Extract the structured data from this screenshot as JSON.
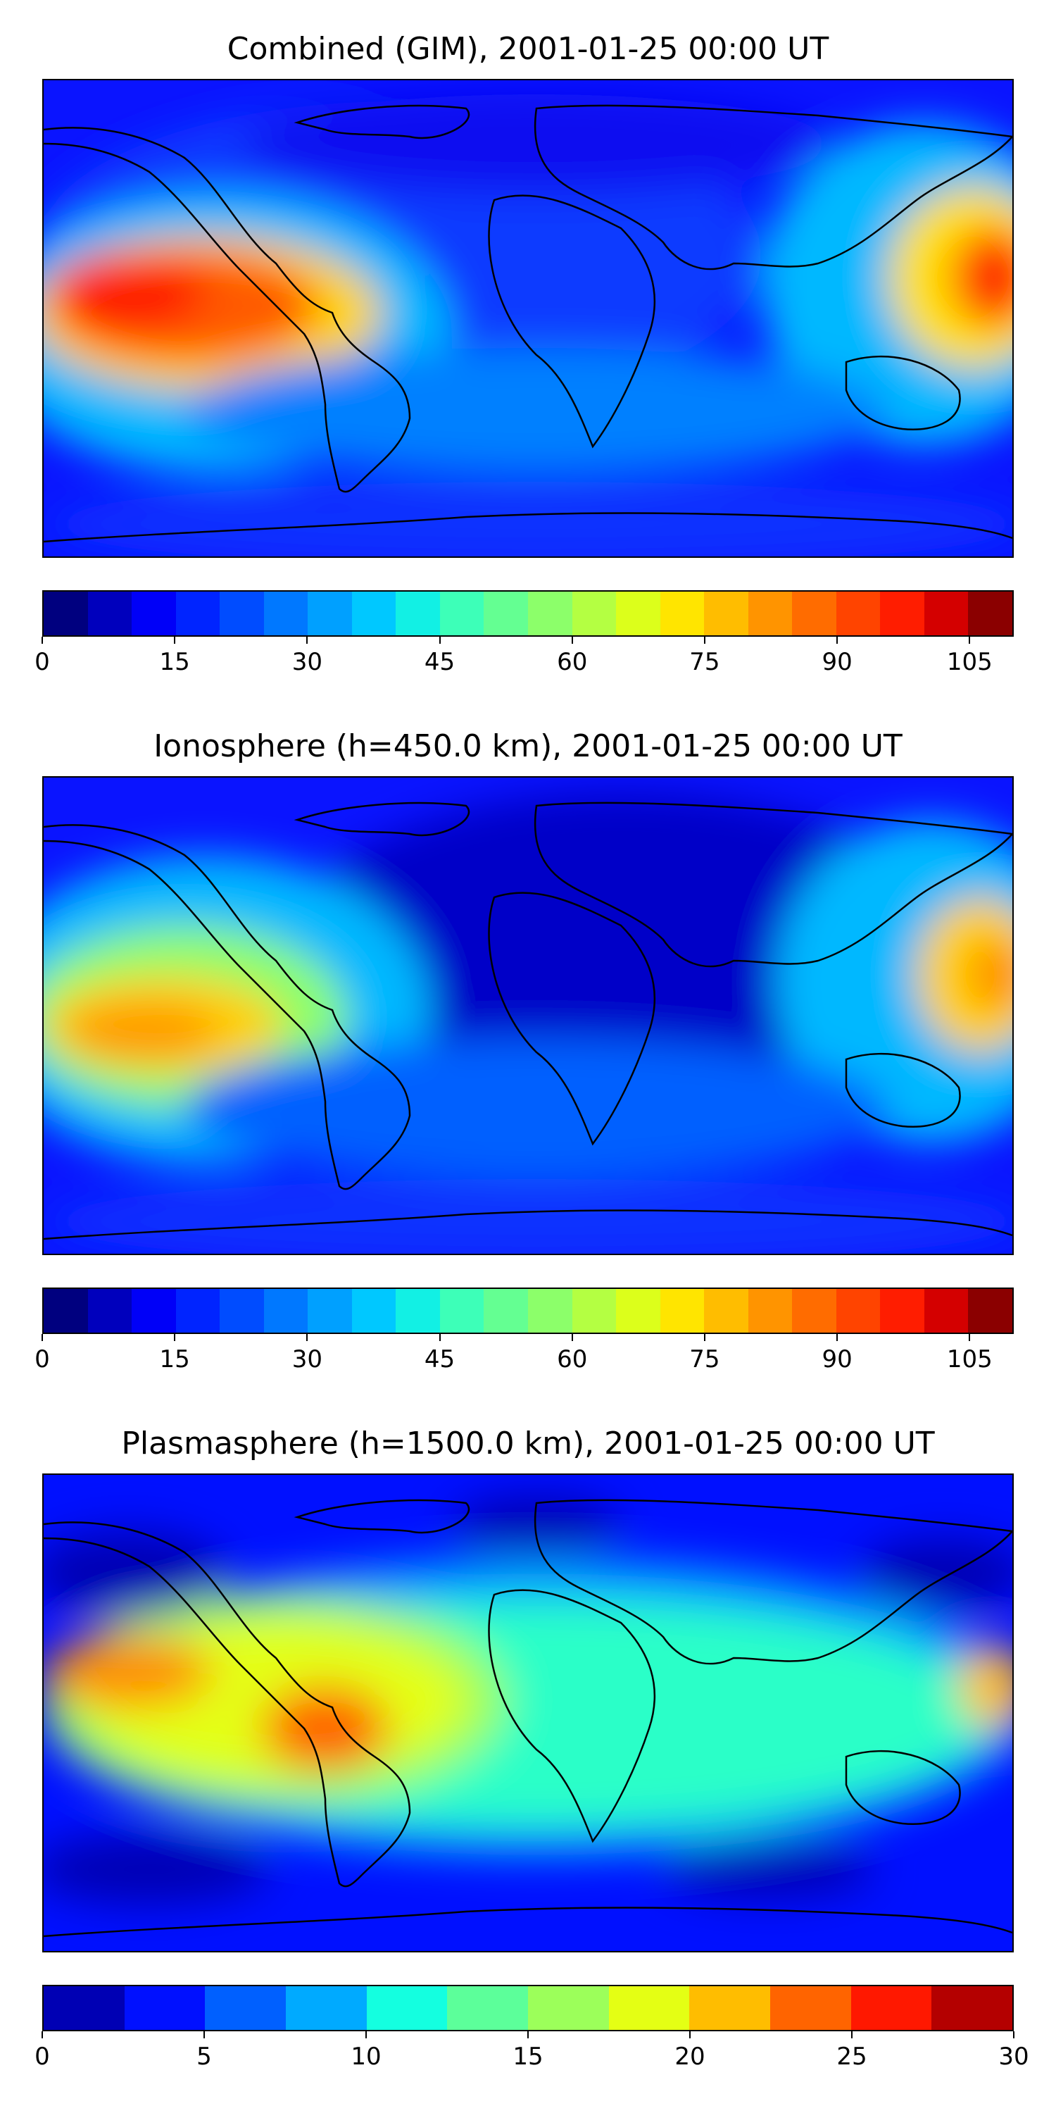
{
  "panels": [
    {
      "title": "Combined (GIM), 2001-01-25 00:00 UT",
      "colorbar": {
        "ticks": [
          "0",
          "15",
          "30",
          "45",
          "60",
          "75",
          "90",
          "105"
        ],
        "tick_values": [
          0,
          15,
          30,
          45,
          60,
          75,
          90,
          105
        ],
        "vmin": 0,
        "vmax": 110,
        "colors": [
          "#00007f",
          "#0000bd",
          "#0000f8",
          "#0024ff",
          "#004cff",
          "#0078ff",
          "#00a0ff",
          "#00c8ff",
          "#12f0e4",
          "#3dffb8",
          "#64ff92",
          "#8cff6a",
          "#b4ff42",
          "#dcff1b",
          "#ffe500",
          "#ffbd00",
          "#ff9400",
          "#ff6c00",
          "#ff4400",
          "#ff1d00",
          "#d40000",
          "#8b0000"
        ]
      },
      "map_colors": {
        "background": "#0a14ff",
        "low": "#0b36ff",
        "mid": "#00b8ff",
        "high": "#ff2a00",
        "peak": "#e00000"
      }
    },
    {
      "title": "Ionosphere  (h=450.0 km), 2001-01-25 00:00 UT",
      "colorbar": {
        "ticks": [
          "0",
          "15",
          "30",
          "45",
          "60",
          "75",
          "90",
          "105"
        ],
        "tick_values": [
          0,
          15,
          30,
          45,
          60,
          75,
          90,
          105
        ],
        "vmin": 0,
        "vmax": 110,
        "colors": [
          "#00007f",
          "#0000bd",
          "#0000f8",
          "#0024ff",
          "#004cff",
          "#0078ff",
          "#00a0ff",
          "#00c8ff",
          "#12f0e4",
          "#3dffb8",
          "#64ff92",
          "#8cff6a",
          "#b4ff42",
          "#dcff1b",
          "#ffe500",
          "#ffbd00",
          "#ff9400",
          "#ff6c00",
          "#ff4400",
          "#ff1d00",
          "#d40000",
          "#8b0000"
        ]
      },
      "map_colors": {
        "background": "#0a14ff",
        "low": "#0000c8",
        "mid": "#00b8ff",
        "high": "#ffd000",
        "peak": "#ff8c00"
      }
    },
    {
      "title": "Plasmasphere (h=1500.0 km), 2001-01-25 00:00 UT",
      "colorbar": {
        "ticks": [
          "0",
          "5",
          "10",
          "15",
          "20",
          "25",
          "30"
        ],
        "tick_values": [
          0,
          5,
          10,
          15,
          20,
          25,
          30
        ],
        "vmin": 0,
        "vmax": 30,
        "colors": [
          "#0000b4",
          "#0010ff",
          "#0060ff",
          "#00aaff",
          "#14ffe0",
          "#5cff9a",
          "#9cff5a",
          "#e4ff14",
          "#ffbd00",
          "#ff6400",
          "#ff1800",
          "#b40000"
        ]
      },
      "map_colors": {
        "background": "#0010ff",
        "low": "#0000b4",
        "mid": "#2cffc8",
        "high": "#ff8c00",
        "peak": "#ff2a00"
      }
    }
  ]
}
